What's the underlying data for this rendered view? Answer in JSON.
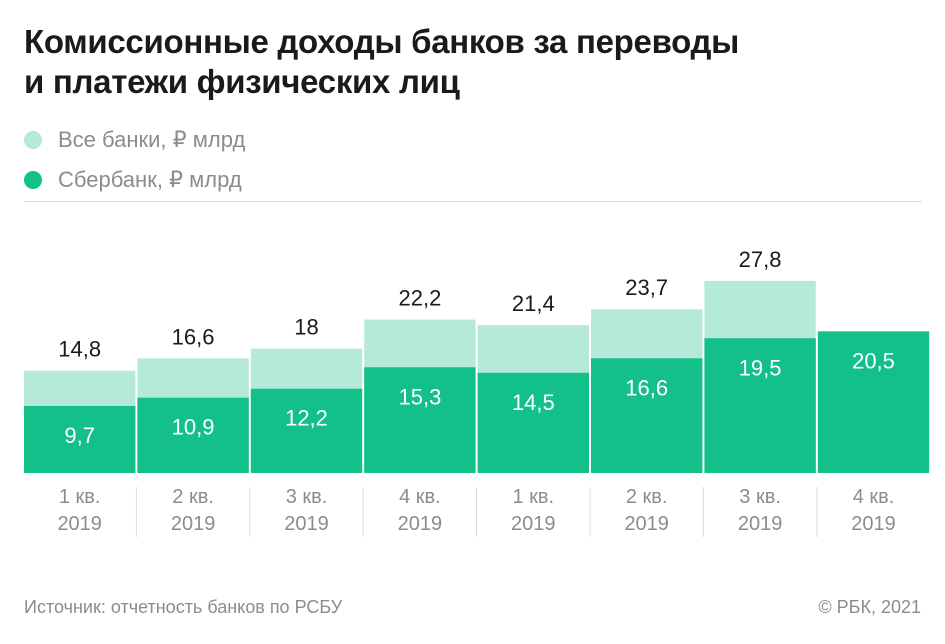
{
  "title_lines": [
    "Комиссионные доходы банков за переводы",
    "и платежи физических лиц"
  ],
  "legend": [
    {
      "label": "Все банки, ₽ млрд",
      "color": "#b5ead8"
    },
    {
      "label": "Сбербанк, ₽ млрд",
      "color": "#14c08a"
    }
  ],
  "chart_data": {
    "type": "bar",
    "categories": [
      [
        "1 кв.",
        "2019"
      ],
      [
        "2 кв.",
        "2019"
      ],
      [
        "3 кв.",
        "2019"
      ],
      [
        "4 кв.",
        "2019"
      ],
      [
        "1 кв.",
        "2019"
      ],
      [
        "2 кв.",
        "2019"
      ],
      [
        "3 кв.",
        "2019"
      ],
      [
        "4 кв.",
        "2019"
      ]
    ],
    "series": [
      {
        "name": "Все банки, ₽ млрд",
        "values": [
          14.8,
          16.6,
          18,
          22.2,
          21.4,
          23.7,
          27.8,
          null
        ],
        "labels": [
          "14,8",
          "16,6",
          "18",
          "22,2",
          "21,4",
          "23,7",
          "27,8",
          ""
        ],
        "color": "#b5ead8"
      },
      {
        "name": "Сбербанк, ₽ млрд",
        "values": [
          9.7,
          10.9,
          12.2,
          15.3,
          14.5,
          16.6,
          19.5,
          20.5
        ],
        "labels": [
          "9,7",
          "10,9",
          "12,2",
          "15,3",
          "14,5",
          "16,6",
          "19,5",
          "20,5"
        ],
        "color": "#14c08a"
      }
    ],
    "ylim": [
      0,
      27.8
    ],
    "grid": false,
    "legend_position": "top-left"
  },
  "footer": {
    "source": "Источник: отчетность банков по РСБУ",
    "copyright": "© РБК, 2021"
  }
}
